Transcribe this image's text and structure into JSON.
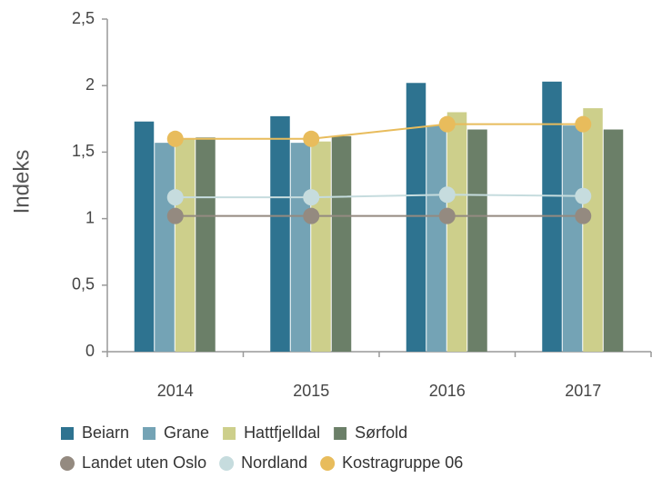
{
  "chart_data": {
    "type": "bar_line",
    "y_label": "Indeks",
    "categories": [
      "2014",
      "2015",
      "2016",
      "2017"
    ],
    "ylim": [
      0,
      2.5
    ],
    "yticks": [
      0,
      {
        "value": 0.5,
        "label": "0,5"
      },
      1,
      {
        "value": 1.5,
        "label": "1,5"
      },
      2,
      {
        "value": 2.5,
        "label": "2,5"
      }
    ],
    "grid": false,
    "series": [
      {
        "name": "Beiarn",
        "kind": "bar",
        "color": "#2e7390",
        "values": [
          1.73,
          1.77,
          2.02,
          2.03
        ]
      },
      {
        "name": "Grane",
        "kind": "bar",
        "color": "#74a3b5",
        "values": [
          1.57,
          1.57,
          1.7,
          1.7
        ]
      },
      {
        "name": "Hattfjelldal",
        "kind": "bar",
        "color": "#cdcf8b",
        "values": [
          1.6,
          1.58,
          1.8,
          1.83
        ]
      },
      {
        "name": "Sørfold",
        "kind": "bar",
        "color": "#6b7f68",
        "values": [
          1.61,
          1.62,
          1.67,
          1.67
        ]
      },
      {
        "name": "Landet uten Oslo",
        "kind": "line",
        "color": "#948a80",
        "values": [
          1.02,
          1.02,
          1.02,
          1.02
        ]
      },
      {
        "name": "Nordland",
        "kind": "line",
        "color": "#c6dcde",
        "values": [
          1.16,
          1.16,
          1.18,
          1.17
        ]
      },
      {
        "name": "Kostragruppe 06",
        "kind": "line",
        "color": "#e8bc5c",
        "values": [
          1.6,
          1.6,
          1.71,
          1.71
        ]
      }
    ]
  }
}
